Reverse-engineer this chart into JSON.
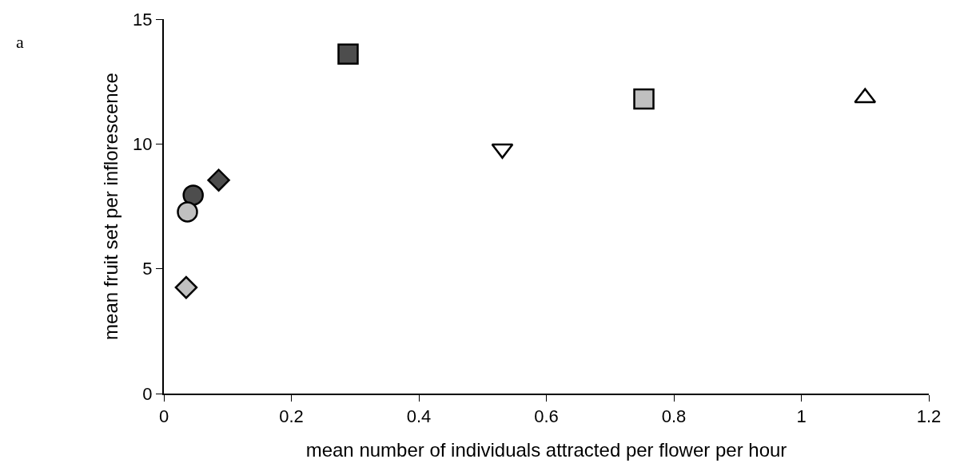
{
  "chart_data": {
    "type": "scatter",
    "xlabel": "mean number of individuals attracted per flower per hour",
    "ylabel": "mean fruit set per inflorescence",
    "annotations": [
      "a"
    ],
    "xlim": [
      0,
      1.2
    ],
    "xticks": [
      0,
      0.2,
      0.4,
      0.6,
      0.8,
      1,
      1.2
    ],
    "ylim": [
      0,
      15
    ],
    "yticks": [
      0,
      5,
      10,
      15
    ],
    "series": [
      {
        "color": "#4d4d4d",
        "marker": "square",
        "x": [
          0.289
        ],
        "values": [
          13.6
        ]
      },
      {
        "color": "#c0c0c0",
        "marker": "square",
        "x": [
          0.753
        ],
        "values": [
          11.8
        ]
      },
      {
        "color": "#ffffff",
        "marker": "triangle",
        "x": [
          1.1
        ],
        "values": [
          11.85
        ]
      },
      {
        "color": "#ffffff",
        "marker": "triangle-down",
        "x": [
          0.531
        ],
        "values": [
          9.8
        ]
      },
      {
        "color": "#4d4d4d",
        "marker": "diamond",
        "x": [
          0.086
        ],
        "values": [
          8.55
        ]
      },
      {
        "color": "#4d4d4d",
        "marker": "circle",
        "x": [
          0.046
        ],
        "values": [
          7.95
        ]
      },
      {
        "color": "#c0c0c0",
        "marker": "circle",
        "x": [
          0.037
        ],
        "values": [
          7.28
        ]
      },
      {
        "color": "#c0c0c0",
        "marker": "diamond",
        "x": [
          0.035
        ],
        "values": [
          4.25
        ]
      }
    ]
  }
}
